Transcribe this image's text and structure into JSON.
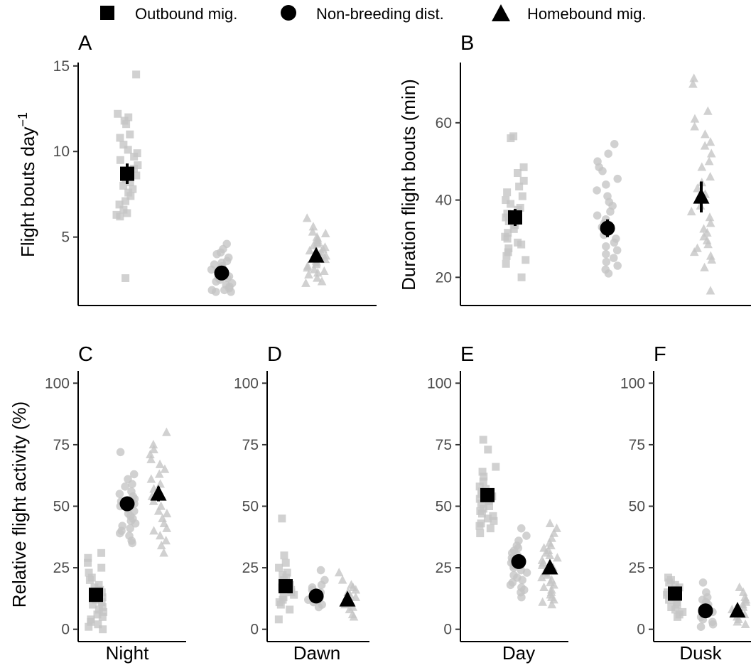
{
  "legend": {
    "items": [
      {
        "label": "Outbound mig.",
        "shape": "square"
      },
      {
        "label": "Non-breeding dist.",
        "shape": "circle"
      },
      {
        "label": "Homebound mig.",
        "shape": "triangle"
      }
    ]
  },
  "colors": {
    "raw_points": "#c4c4c4",
    "means": "#000000",
    "axes": "#000000",
    "tick_labels": "#4d4d4d"
  },
  "ylabels": {
    "A_main": "Flight bouts day",
    "A_sup": "−1",
    "B": "Duration flight bouts (min)",
    "CF": "Relative flight activity (%)"
  },
  "chart_data": [
    {
      "panel": "A",
      "type": "scatter",
      "ylabel": "Flight bouts day−1",
      "ylim": [
        1.0,
        15.2
      ],
      "yticks": [
        5,
        10,
        15
      ],
      "xlabel": "",
      "series": [
        {
          "name": "Outbound mig.",
          "shape": "square",
          "mean": 8.7,
          "err": 0.6,
          "values": [
            14.5,
            12.2,
            12.0,
            11.8,
            11.6,
            11.0,
            10.8,
            10.4,
            10.1,
            9.9,
            9.7,
            9.5,
            9.2,
            9.0,
            8.8,
            8.6,
            8.4,
            8.2,
            8.0,
            7.8,
            7.6,
            7.4,
            7.1,
            6.9,
            6.6,
            6.4,
            6.3,
            6.2,
            2.6
          ]
        },
        {
          "name": "Non-breeding dist.",
          "shape": "circle",
          "mean": 2.9,
          "err": 0.2,
          "values": [
            4.6,
            4.3,
            4.1,
            4.0,
            3.8,
            3.6,
            3.5,
            3.3,
            3.2,
            3.1,
            3.0,
            2.9,
            2.8,
            2.7,
            2.6,
            2.5,
            2.4,
            2.3,
            2.2,
            2.1,
            2.0,
            1.9,
            1.9,
            1.8,
            1.8,
            2.6,
            3.4
          ]
        },
        {
          "name": "Homebound mig.",
          "shape": "triangle",
          "mean": 3.9,
          "err": 0.3,
          "values": [
            6.1,
            5.6,
            5.3,
            5.2,
            5.0,
            4.9,
            4.8,
            4.7,
            4.6,
            4.5,
            4.4,
            4.3,
            4.2,
            4.1,
            4.0,
            3.9,
            3.8,
            3.7,
            3.6,
            3.5,
            3.4,
            3.3,
            3.2,
            3.1,
            3.0,
            2.9,
            2.8,
            2.6,
            2.4,
            2.3
          ]
        }
      ]
    },
    {
      "panel": "B",
      "type": "scatter",
      "ylabel": "Duration flight bouts (min)",
      "ylim": [
        12.7,
        75.6
      ],
      "yticks": [
        20,
        40,
        60
      ],
      "xlabel": "",
      "series": [
        {
          "name": "Outbound mig.",
          "shape": "square",
          "mean": 35.5,
          "err": 2.2,
          "values": [
            56.5,
            56.0,
            48.5,
            47.0,
            45.0,
            43.5,
            42.0,
            41.0,
            40.0,
            39.0,
            38.0,
            37.5,
            36.5,
            35.5,
            34.5,
            33.5,
            32.5,
            31.5,
            30.5,
            30.0,
            29.0,
            28.5,
            27.5,
            26.5,
            25.5,
            24.5,
            23.5,
            20.0
          ]
        },
        {
          "name": "Non-breeding dist.",
          "shape": "circle",
          "mean": 32.7,
          "err": 2.3,
          "values": [
            54.5,
            52.0,
            50.0,
            48.5,
            47.5,
            45.5,
            44.0,
            42.5,
            41.0,
            39.5,
            38.5,
            37.0,
            36.0,
            35.0,
            34.0,
            33.0,
            32.0,
            31.0,
            30.0,
            29.0,
            28.0,
            27.0,
            26.0,
            25.0,
            24.0,
            23.0,
            22.0,
            21.0
          ]
        },
        {
          "name": "Homebound mig.",
          "shape": "triangle",
          "mean": 40.8,
          "err": 4.0,
          "values": [
            71.5,
            70.0,
            63.0,
            61.0,
            59.0,
            57.0,
            55.0,
            54.0,
            52.0,
            50.0,
            48.5,
            46.0,
            44.5,
            43.0,
            41.5,
            40.0,
            38.5,
            37.0,
            35.5,
            34.0,
            32.5,
            31.5,
            30.5,
            29.5,
            28.5,
            27.5,
            26.5,
            25.5,
            24.5,
            22.5,
            16.5
          ]
        }
      ]
    },
    {
      "panel": "C",
      "type": "scatter",
      "xlabel": "Night",
      "ylabel": "Relative flight activity (%)",
      "ylim": [
        -5,
        105
      ],
      "yticks": [
        0,
        25,
        50,
        75,
        100
      ],
      "series": [
        {
          "name": "Outbound mig.",
          "shape": "square",
          "mean": 14.0,
          "err": 2.0,
          "values": [
            31,
            29,
            27,
            25,
            23,
            21,
            20,
            18,
            17,
            16,
            15,
            14,
            13,
            12,
            11,
            10,
            9,
            8,
            7,
            6,
            5,
            4,
            3,
            2,
            1,
            0
          ]
        },
        {
          "name": "Non-breeding dist.",
          "shape": "circle",
          "mean": 51.0,
          "err": 2.0,
          "values": [
            72,
            63,
            61,
            59,
            58,
            56,
            55,
            54,
            53,
            52,
            51,
            50,
            49,
            48,
            47,
            46,
            45,
            44,
            43,
            42,
            41,
            40,
            39,
            38,
            36,
            35
          ]
        },
        {
          "name": "Homebound mig.",
          "shape": "triangle",
          "mean": 55.0,
          "err": 3.0,
          "values": [
            80,
            75,
            73,
            71,
            69,
            67,
            65,
            63,
            61,
            59,
            57,
            55,
            54,
            52,
            50,
            48,
            47,
            45,
            43,
            41,
            40,
            38,
            36,
            34,
            31
          ]
        }
      ]
    },
    {
      "panel": "D",
      "type": "scatter",
      "xlabel": "Dawn",
      "ylim": [
        -5,
        105
      ],
      "yticks": [
        0,
        25,
        50,
        75,
        100
      ],
      "series": [
        {
          "name": "Outbound mig.",
          "shape": "square",
          "mean": 17.5,
          "err": 1.8,
          "values": [
            45,
            30,
            27,
            25,
            23,
            22,
            21,
            20,
            19,
            18,
            17,
            16,
            15,
            14,
            13,
            12,
            11,
            10,
            8,
            4
          ]
        },
        {
          "name": "Non-breeding dist.",
          "shape": "circle",
          "mean": 13.5,
          "err": 1.0,
          "values": [
            24,
            20,
            18,
            17,
            16,
            15,
            14,
            13,
            12,
            11,
            10,
            9
          ]
        },
        {
          "name": "Homebound mig.",
          "shape": "triangle",
          "mean": 12.0,
          "err": 1.2,
          "values": [
            23,
            20,
            18,
            17,
            16,
            15,
            14,
            13,
            12,
            11,
            10,
            9,
            8,
            6,
            5
          ]
        }
      ]
    },
    {
      "panel": "E",
      "type": "scatter",
      "xlabel": "Day",
      "ylim": [
        -5,
        105
      ],
      "yticks": [
        0,
        25,
        50,
        75,
        100
      ],
      "series": [
        {
          "name": "Outbound mig.",
          "shape": "square",
          "mean": 54.5,
          "err": 2.0,
          "values": [
            77,
            73,
            66,
            64,
            62,
            60,
            58,
            57,
            56,
            55,
            54,
            53,
            52,
            51,
            50,
            49,
            48,
            47,
            46,
            45,
            44,
            43,
            42,
            41,
            39
          ]
        },
        {
          "name": "Non-breeding dist.",
          "shape": "circle",
          "mean": 27.5,
          "err": 1.8,
          "values": [
            41,
            38,
            36,
            34,
            33,
            32,
            31,
            30,
            29,
            28,
            27,
            26,
            25,
            24,
            23,
            22,
            21,
            20,
            19,
            18,
            17,
            16,
            15,
            13
          ]
        },
        {
          "name": "Homebound mig.",
          "shape": "triangle",
          "mean": 25.0,
          "err": 2.0,
          "values": [
            43,
            41,
            39,
            37,
            35,
            34,
            33,
            32,
            31,
            30,
            29,
            28,
            27,
            26,
            25,
            24,
            23,
            22,
            21,
            20,
            19,
            18,
            17,
            16,
            15,
            14,
            13,
            12,
            11,
            10
          ]
        }
      ]
    },
    {
      "panel": "F",
      "type": "scatter",
      "xlabel": "Dusk",
      "ylim": [
        -5,
        105
      ],
      "yticks": [
        0,
        25,
        50,
        75,
        100
      ],
      "series": [
        {
          "name": "Outbound mig.",
          "shape": "square",
          "mean": 14.5,
          "err": 1.3,
          "values": [
            21,
            20,
            19,
            18,
            17,
            16,
            15,
            14,
            13,
            12,
            11,
            10,
            9,
            8,
            7,
            6,
            5
          ]
        },
        {
          "name": "Non-breeding dist.",
          "shape": "circle",
          "mean": 7.5,
          "err": 0.8,
          "values": [
            19,
            15,
            13,
            12,
            11,
            10,
            9,
            8,
            7,
            6,
            5,
            4,
            3,
            2,
            1
          ]
        },
        {
          "name": "Homebound mig.",
          "shape": "triangle",
          "mean": 7.5,
          "err": 1.0,
          "values": [
            17,
            15,
            13,
            12,
            11,
            10,
            9,
            8,
            7,
            6,
            5,
            4,
            3,
            2
          ]
        }
      ]
    }
  ]
}
